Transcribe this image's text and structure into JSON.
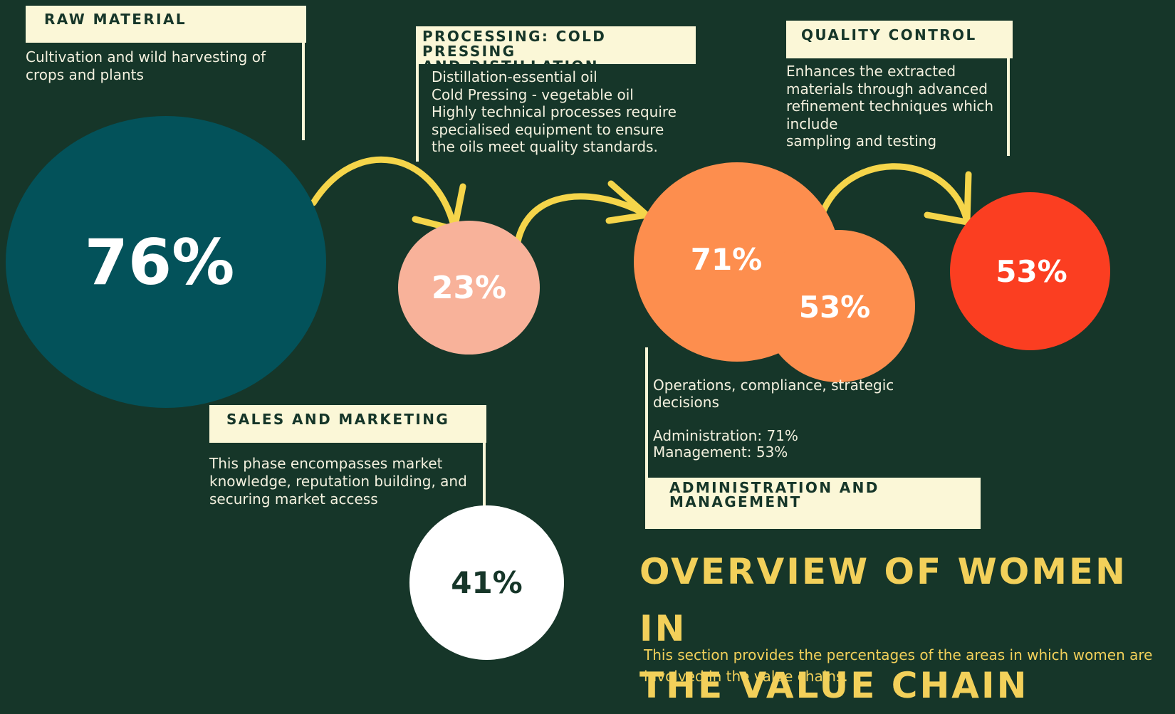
{
  "title": "OVERVIEW OF WOMEN IN\nTHE VALUE CHAIN",
  "subtitle": "This section provides the percentages of the areas in which women are involved in the value chains.",
  "colors": {
    "background": "#163629",
    "label_box": "#fbf7d7",
    "arrow": "#f5d54a",
    "raw_material": "#03525a",
    "processing": "#f8b29a",
    "administration": "#fd8e4e",
    "management": "#fd8e4e",
    "quality_control": "#fb3e21",
    "sales_marketing": "#ffffff",
    "title": "#f2d05a"
  },
  "stages": {
    "raw_material": {
      "label": "RAW MATERIAL",
      "description": "Cultivation and wild harvesting of\ncrops and plants",
      "percent": "76%"
    },
    "processing": {
      "label": "PROCESSING: COLD PRESSING\nAND DISTILLATION",
      "description": "Distillation-essential oil\nCold Pressing - vegetable oil\nHighly technical processes require\nspecialised equipment to ensure\nthe oils meet quality standards.",
      "percent": "23%"
    },
    "quality_control": {
      "label": "QUALITY CONTROL",
      "description": "Enhances the extracted\nmaterials through advanced\nrefinement techniques which\ninclude\nsampling and testing",
      "percent": "53%"
    },
    "admin_management": {
      "label": "ADMINISTRATION AND\nMANAGEMENT",
      "description": "Operations, compliance, strategic\ndecisions\n\nAdministration: 71%\nManagement: 53%",
      "admin_percent": "71%",
      "management_percent": "53%"
    },
    "sales_marketing": {
      "label": "SALES AND MARKETING",
      "description": "This phase encompasses market\nknowledge, reputation building, and\nsecuring market access",
      "percent": "41%"
    }
  }
}
